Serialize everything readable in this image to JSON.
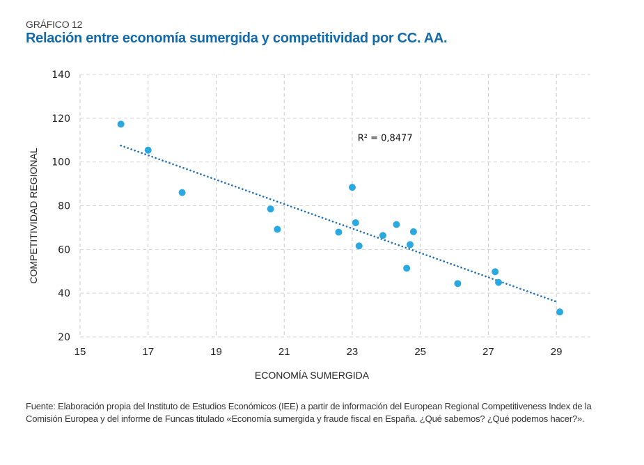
{
  "header": {
    "kicker": "GRÁFICO 12",
    "title": "Relación entre economía sumergida y competitividad por CC. AA."
  },
  "chart_data": {
    "type": "scatter",
    "title": "Relación entre economía sumergida y competitividad por CC. AA.",
    "xlabel": "ECONOMÍA SUMERGIDA",
    "ylabel": "COMPETITIVIDAD REGIONAL",
    "xlim": [
      15,
      30
    ],
    "ylim": [
      20,
      140
    ],
    "x_ticks": [
      15,
      17,
      19,
      21,
      23,
      25,
      27,
      29
    ],
    "y_ticks": [
      20,
      40,
      60,
      80,
      100,
      120,
      140
    ],
    "grid": true,
    "legend": "none",
    "series": [
      {
        "name": "CC. AA.",
        "color": "#2aa9e0",
        "points": [
          {
            "x": 16.2,
            "y": 117.3
          },
          {
            "x": 17.0,
            "y": 105.4
          },
          {
            "x": 18.0,
            "y": 86.0
          },
          {
            "x": 20.6,
            "y": 78.5
          },
          {
            "x": 20.8,
            "y": 69.2
          },
          {
            "x": 22.6,
            "y": 67.9
          },
          {
            "x": 23.0,
            "y": 88.4
          },
          {
            "x": 23.1,
            "y": 72.2
          },
          {
            "x": 23.2,
            "y": 61.6
          },
          {
            "x": 23.9,
            "y": 66.4
          },
          {
            "x": 24.3,
            "y": 71.4
          },
          {
            "x": 24.6,
            "y": 51.4
          },
          {
            "x": 24.7,
            "y": 62.2
          },
          {
            "x": 24.8,
            "y": 68.1
          },
          {
            "x": 26.1,
            "y": 44.4
          },
          {
            "x": 27.2,
            "y": 49.8
          },
          {
            "x": 27.3,
            "y": 44.9
          },
          {
            "x": 29.1,
            "y": 31.4
          }
        ]
      }
    ],
    "trendline": {
      "type": "linear",
      "color": "#1f6fb5",
      "style": "dotted",
      "start": {
        "x": 16.2,
        "y": 107.5
      },
      "end": {
        "x": 29.0,
        "y": 36.1
      }
    },
    "annotations": [
      {
        "text": "R² = 0,8477",
        "x": 23.2,
        "y": 109
      }
    ]
  },
  "footer": {
    "source_line1": "Fuente: Elaboración propia del Instituto de Estudios Económicos (IEE) a partir de información del European Regional Competitiveness Index de la",
    "source_line2": "Comisión Europea y del informe de Funcas titulado «Economía sumergida  y fraude fiscal en España. ¿Qué sabemos? ¿Qué podemos hacer?»."
  }
}
